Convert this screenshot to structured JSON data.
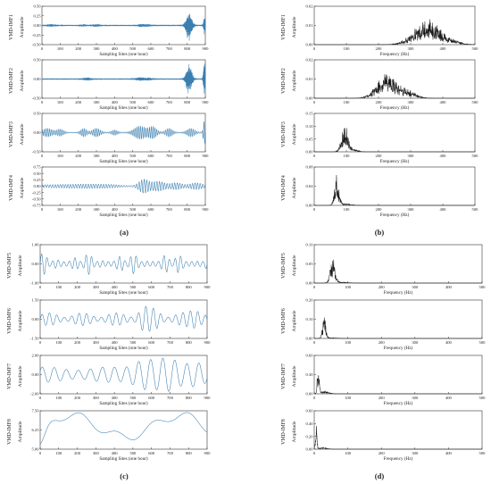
{
  "panel_labels": [
    "(a)",
    "(b)",
    "(c)",
    "(d)"
  ],
  "colors": {
    "time_series": "#3a7fb0",
    "spectrum": "#1a1a1a",
    "axis": "#333333"
  },
  "chart_data": [
    {
      "panel": "a",
      "type": "line",
      "kind": "imf1",
      "series_name": "VMD-IMF1",
      "ylabel": "Amplitude",
      "xlabel": "Sampling Sites (one hour)",
      "xlim": [
        0,
        900
      ],
      "ylim": [
        -0.5,
        0.5
      ],
      "xticks": [
        0,
        100,
        200,
        300,
        400,
        500,
        600,
        700,
        800,
        900
      ],
      "yticks": [
        -0.5,
        -0.25,
        0,
        0.25,
        0.5
      ],
      "ytick_labels": [
        "-0.50",
        "-0.25",
        "0.00",
        "0.25",
        "0.50"
      ],
      "bursts": [
        [
          810,
          14,
          0.42
        ],
        [
          895,
          5,
          0.25
        ]
      ],
      "features": [
        [
          55,
          25,
          0.03
        ],
        [
          230,
          15,
          0.03
        ],
        [
          300,
          20,
          0.03
        ],
        [
          545,
          15,
          0.03
        ],
        [
          580,
          20,
          0.03
        ]
      ]
    },
    {
      "panel": "a",
      "type": "line",
      "kind": "imf2",
      "series_name": "VMD-IMF2",
      "ylabel": "Amplitude",
      "xlabel": "Sampling Sites (one hour)",
      "xlim": [
        0,
        900
      ],
      "ylim": [
        -0.5,
        0.5
      ],
      "xticks": [
        0,
        100,
        200,
        300,
        400,
        500,
        600,
        700,
        800,
        900
      ],
      "yticks": [
        -0.5,
        0,
        0.5
      ],
      "ytick_labels": [
        "-0.50",
        "0.00",
        "0.50"
      ],
      "bursts": [
        [
          810,
          14,
          0.4
        ],
        [
          895,
          5,
          0.5
        ]
      ],
      "features": [
        [
          250,
          20,
          0.04
        ],
        [
          540,
          20,
          0.05
        ],
        [
          590,
          15,
          0.04
        ]
      ]
    },
    {
      "panel": "a",
      "type": "line",
      "kind": "imf3",
      "series_name": "VMD-IMF3",
      "ylabel": "Amplitude",
      "xlabel": "Sampling Sites (one hour)",
      "xlim": [
        0,
        900
      ],
      "ylim": [
        -0.5,
        0.5
      ],
      "xticks": [
        0,
        100,
        200,
        300,
        400,
        500,
        600,
        700,
        800,
        900
      ],
      "yticks": [
        -0.5,
        0,
        0.5
      ],
      "ytick_labels": [
        "-0.50",
        "0.00",
        "0.50"
      ],
      "groups": [
        [
          30,
          25,
          0.1
        ],
        [
          100,
          18,
          0.08
        ],
        [
          230,
          15,
          0.1
        ],
        [
          300,
          20,
          0.1
        ],
        [
          400,
          15,
          0.06
        ],
        [
          540,
          30,
          0.16
        ],
        [
          610,
          20,
          0.14
        ],
        [
          700,
          18,
          0.1
        ],
        [
          820,
          20,
          0.1
        ],
        [
          895,
          6,
          0.3
        ]
      ],
      "period": 10
    },
    {
      "panel": "a",
      "type": "line",
      "kind": "imf4",
      "series_name": "VMD-IMF4",
      "ylabel": "Amplitude",
      "xlabel": "Sampling Sites (one hour)",
      "xlim": [
        0,
        900
      ],
      "ylim": [
        -0.75,
        0.75
      ],
      "xticks": [
        0,
        100,
        200,
        300,
        400,
        500,
        600,
        700,
        800,
        900
      ],
      "yticks": [
        -0.75,
        -0.5,
        -0.25,
        0,
        0.25,
        0.5,
        0.75
      ],
      "ytick_labels": [
        "-0.75",
        "-0.50",
        "-0.25",
        "0.00",
        "0.25",
        "0.50",
        "0.75"
      ],
      "groups": [
        [
          80,
          120,
          0.05
        ],
        [
          260,
          80,
          0.05
        ],
        [
          380,
          60,
          0.04
        ],
        [
          560,
          25,
          0.25
        ],
        [
          640,
          35,
          0.18
        ],
        [
          740,
          30,
          0.12
        ],
        [
          850,
          35,
          0.12
        ]
      ],
      "period": 14
    },
    {
      "panel": "b",
      "type": "line",
      "kind": "spectrum",
      "series_name": "VMD-IMF1",
      "ylabel": "Amplitude",
      "xlabel": "Frequency (Hz)",
      "xlim": [
        0,
        500
      ],
      "ylim": [
        0,
        0.02
      ],
      "xticks": [
        0,
        100,
        200,
        300,
        400,
        500
      ],
      "yticks": [
        0,
        0.01,
        0.02
      ],
      "ytick_labels": [
        "0.00",
        "0.01",
        "0.02"
      ],
      "peak": [
        350,
        40,
        0.0135
      ],
      "tail": [
        420,
        30,
        0.002
      ]
    },
    {
      "panel": "b",
      "type": "line",
      "kind": "spectrum",
      "series_name": "VMD-IMF2",
      "ylabel": "Amplitude",
      "xlabel": "Frequency (Hz)",
      "xlim": [
        0,
        500
      ],
      "ylim": [
        0,
        0.02
      ],
      "xticks": [
        0,
        100,
        200,
        300,
        400,
        500
      ],
      "yticks": [
        0,
        0.01,
        0.02
      ],
      "ytick_labels": [
        "0.00",
        "0.01",
        "0.02"
      ],
      "peak": [
        225,
        30,
        0.014
      ],
      "tail": [
        290,
        25,
        0.004
      ]
    },
    {
      "panel": "b",
      "type": "line",
      "kind": "spectrum",
      "series_name": "VMD-IMF3",
      "ylabel": "Amplitude",
      "xlabel": "Frequency (Hz)",
      "xlim": [
        0,
        500
      ],
      "ylim": [
        0,
        0.15
      ],
      "xticks": [
        0,
        100,
        200,
        300,
        400,
        500
      ],
      "yticks": [
        0,
        0.05,
        0.1,
        0.15
      ],
      "ytick_labels": [
        "0.00",
        "0.05",
        "0.10",
        "0.15"
      ],
      "peak": [
        95,
        10,
        0.11
      ],
      "tail": [
        125,
        12,
        0.01
      ]
    },
    {
      "panel": "b",
      "type": "line",
      "kind": "spectrum",
      "series_name": "VMD-IMF4",
      "ylabel": "Amplitude",
      "xlabel": "Frequency (Hz)",
      "xlim": [
        0,
        500
      ],
      "ylim": [
        0,
        0.08
      ],
      "xticks": [
        0,
        100,
        200,
        300,
        400,
        500
      ],
      "yticks": [
        0,
        0.04,
        0.08
      ],
      "ytick_labels": [
        "0.00",
        "0.04",
        "0.08"
      ],
      "peak": [
        70,
        7,
        0.065
      ],
      "tail": [
        100,
        15,
        0.004
      ]
    },
    {
      "panel": "c",
      "type": "line",
      "kind": "imf5",
      "series_name": "VMD-IMF5",
      "ylabel": "Amplitude",
      "xlabel": "Sampling Sites (one hour)",
      "xlim": [
        0,
        900
      ],
      "ylim": [
        -1,
        1
      ],
      "xticks": [
        0,
        100,
        200,
        300,
        400,
        500,
        600,
        700,
        800,
        900
      ],
      "yticks": [
        -1,
        0,
        1
      ],
      "ytick_labels": [
        "-1.00",
        "0.00",
        "1.00"
      ],
      "period": 30
    },
    {
      "panel": "c",
      "type": "line",
      "kind": "imf6",
      "series_name": "VMD-IMF6",
      "ylabel": "Amplitude",
      "xlabel": "Sampling Sites (one hour)",
      "xlim": [
        0,
        900
      ],
      "ylim": [
        -1.5,
        1.5
      ],
      "xticks": [
        0,
        100,
        200,
        300,
        400,
        500,
        600,
        700,
        800,
        900
      ],
      "yticks": [
        -1.5,
        0,
        1.5
      ],
      "ytick_labels": [
        "-1.50",
        "0.00",
        "1.50"
      ],
      "period": 40
    },
    {
      "panel": "c",
      "type": "line",
      "kind": "imf7",
      "series_name": "VMD-IMF7",
      "ylabel": "Amplitude",
      "xlabel": "Sampling Sites (one hour)",
      "xlim": [
        0,
        900
      ],
      "ylim": [
        -2,
        2
      ],
      "xticks": [
        0,
        100,
        200,
        300,
        400,
        500,
        600,
        700,
        800,
        900
      ],
      "yticks": [
        -2,
        0,
        2
      ],
      "ytick_labels": [
        "-2.00",
        "0.00",
        "2.00"
      ],
      "period": 65
    },
    {
      "panel": "c",
      "type": "line",
      "kind": "imf8",
      "series_name": "VMD-IMF8",
      "ylabel": "Amplitude",
      "xlabel": "Sampling Sites (one hour)",
      "xlim": [
        0,
        900
      ],
      "ylim": [
        5,
        7.5
      ],
      "xticks": [
        0,
        100,
        200,
        300,
        400,
        500,
        600,
        700,
        800,
        900
      ],
      "yticks": [
        5,
        6.25,
        7.5
      ],
      "ytick_labels": [
        "5.00",
        "6.25",
        "7.50"
      ]
    },
    {
      "panel": "d",
      "type": "line",
      "kind": "spectrum",
      "series_name": "VMD-IMF5",
      "ylabel": "Amplitude",
      "xlabel": "Frequency (Hz)",
      "xlim": [
        0,
        500
      ],
      "ylim": [
        0,
        0.1
      ],
      "xticks": [
        0,
        100,
        200,
        300,
        400,
        500
      ],
      "yticks": [
        0,
        0.05,
        0.1
      ],
      "ytick_labels": [
        "0.00",
        "0.05",
        "0.10"
      ],
      "peak": [
        55,
        7,
        0.072
      ],
      "tail": [
        80,
        20,
        0.003
      ]
    },
    {
      "panel": "d",
      "type": "line",
      "kind": "spectrum",
      "series_name": "VMD-IMF6",
      "ylabel": "Amplitude",
      "xlabel": "Frequency (Hz)",
      "xlim": [
        0,
        500
      ],
      "ylim": [
        0,
        0.2
      ],
      "xticks": [
        0,
        100,
        200,
        300,
        400,
        500
      ],
      "yticks": [
        0,
        0.1,
        0.2
      ],
      "ytick_labels": [
        "0.00",
        "0.10",
        "0.20"
      ],
      "peak": [
        30,
        5,
        0.13
      ],
      "tail": [
        55,
        15,
        0.004
      ]
    },
    {
      "panel": "d",
      "type": "line",
      "kind": "spectrum",
      "series_name": "VMD-IMF7",
      "ylabel": "Amplitude",
      "xlabel": "Frequency (Hz)",
      "xlim": [
        0,
        500
      ],
      "ylim": [
        0,
        0.6
      ],
      "xticks": [
        0,
        100,
        200,
        300,
        400,
        500
      ],
      "yticks": [
        0,
        0.3,
        0.6
      ],
      "ytick_labels": [
        "0.00",
        "0.30",
        "0.60"
      ],
      "peak": [
        12,
        3,
        0.48
      ],
      "tail": [
        30,
        12,
        0.05
      ]
    },
    {
      "panel": "d",
      "type": "line",
      "kind": "spectrum",
      "series_name": "VMD-IMF8",
      "ylabel": "Amplitude",
      "xlabel": "Frequency (Hz)",
      "xlim": [
        0,
        500
      ],
      "ylim": [
        0,
        0.6
      ],
      "xticks": [
        0,
        100,
        200,
        300,
        400,
        500
      ],
      "yticks": [
        0,
        0.2,
        0.4,
        0.6
      ],
      "ytick_labels": [
        "0.00",
        "0.20",
        "0.40",
        "0.60"
      ],
      "peak": [
        6,
        2.5,
        0.38
      ],
      "tail": [
        25,
        12,
        0.03
      ]
    }
  ]
}
